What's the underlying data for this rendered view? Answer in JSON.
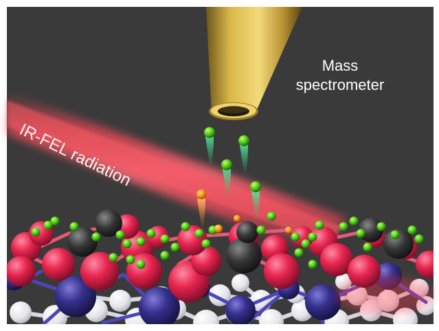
{
  "labels": {
    "mass_spectrometer_line1": "Mass",
    "mass_spectrometer_line2": "spectrometer",
    "ir_fel_radiation": "IR-FEL radiation"
  },
  "colors": {
    "background": "#3a3a3a",
    "frame": "#ffffff",
    "laser_beam": "#ff3a4a",
    "spectrometer_tip": "#c9a43c",
    "hydrogen_atom": "#4fcf1a",
    "desorbed_trail": "#2fd08a",
    "excited_atom": "#ff9a1a",
    "red_atom": "#e8264f",
    "blue_atom": "#35308e",
    "gray_atom": "#2e2e2e",
    "white_atom": "#e9e9ee"
  },
  "icons": [
    "mass-spectrometer-nozzle",
    "laser-beam",
    "atom-sphere"
  ]
}
